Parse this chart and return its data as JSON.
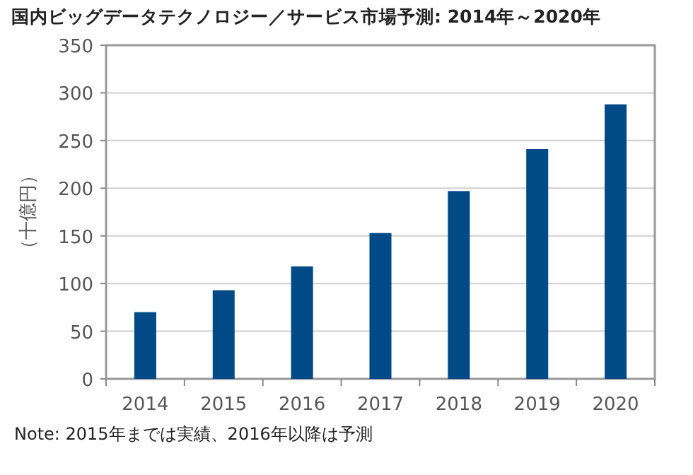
{
  "chart_data": {
    "type": "bar",
    "title": "国内ビッグデータテクノロジー／サービス市場予測: 2014年～2020年",
    "ylabel": "（十億円）",
    "categories": [
      "2014",
      "2015",
      "2016",
      "2017",
      "2018",
      "2019",
      "2020"
    ],
    "values": [
      70,
      93,
      118,
      153,
      197,
      241,
      288
    ],
    "color": "#004a87",
    "ylim": [
      0,
      350
    ],
    "yticks": [
      0,
      50,
      100,
      150,
      200,
      250,
      300,
      350
    ],
    "grid": "y",
    "annotations": [
      "Note: 2015年までは実績、2016年以降は予測"
    ]
  }
}
